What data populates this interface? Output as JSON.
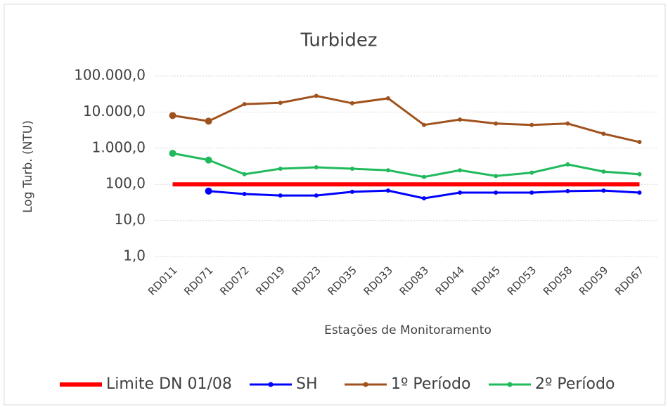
{
  "chart_data": {
    "type": "line",
    "title": "Turbidez",
    "y_label": "Log Turb. (NTU)",
    "x_label": "Estações de Monitoramento",
    "categories": [
      "RD011",
      "RD071",
      "RD072",
      "RD019",
      "RD023",
      "RD035",
      "RD033",
      "RD083",
      "RD044",
      "RD045",
      "RD053",
      "RD058",
      "RD059",
      "RD067"
    ],
    "log_scale": true,
    "grid": true,
    "legend": "bottom",
    "ylim": [
      1,
      100000
    ],
    "yticks": [
      {
        "value": 1,
        "label": "1,0"
      },
      {
        "value": 10,
        "label": "10,0"
      },
      {
        "value": 100,
        "label": "100,0"
      },
      {
        "value": 1000,
        "label": "1.000,0"
      },
      {
        "value": 10000,
        "label": "10.000,0"
      },
      {
        "value": 100000,
        "label": "100.000,0"
      }
    ],
    "series": [
      {
        "name": "Limite DN 01/08",
        "color": "#ff0000",
        "markers": false,
        "values": [
          100,
          100,
          100,
          100,
          100,
          100,
          100,
          100,
          100,
          100,
          100,
          100,
          100,
          100
        ]
      },
      {
        "name": "SH",
        "color": "#0000ff",
        "markers": true,
        "values": [
          null,
          65,
          54,
          49,
          49,
          62,
          67,
          41,
          59,
          59,
          59,
          65,
          67,
          59
        ]
      },
      {
        "name": "1º Período",
        "color": "#a0521e",
        "markers": true,
        "values": [
          8000,
          5600,
          16600,
          18000,
          28000,
          17500,
          24000,
          4400,
          6200,
          4800,
          4400,
          4800,
          2500,
          1480
        ]
      },
      {
        "name": "2º Período",
        "color": "#1fba5c",
        "markers": true,
        "values": [
          720,
          470,
          190,
          270,
          295,
          270,
          245,
          160,
          245,
          170,
          210,
          355,
          225,
          190
        ]
      }
    ]
  }
}
